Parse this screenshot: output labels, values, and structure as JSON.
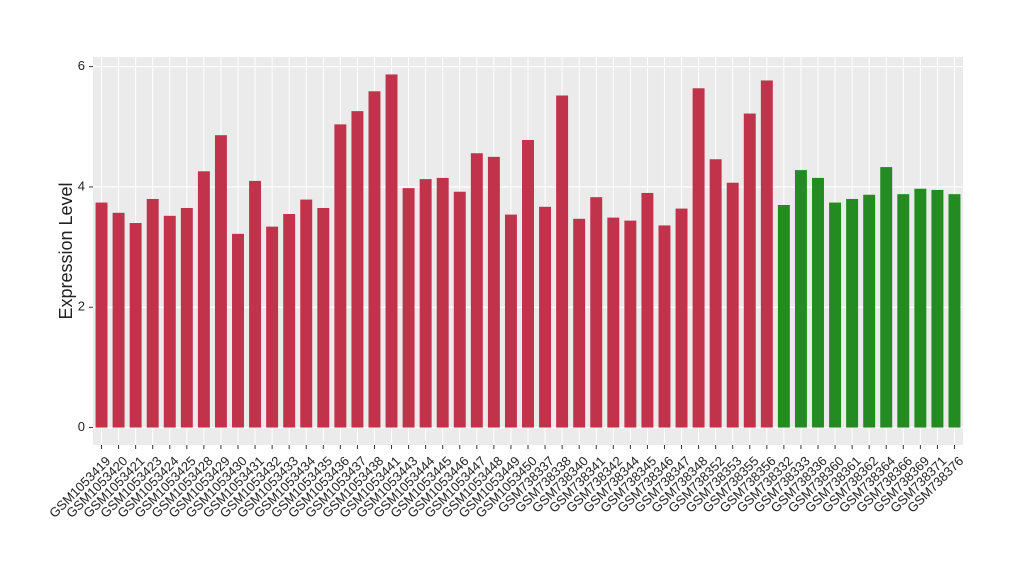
{
  "chart_data": {
    "type": "bar",
    "y_label": "Expression Level",
    "categories": [
      "GSM1053419",
      "GSM1053420",
      "GSM1053421",
      "GSM1053423",
      "GSM1053424",
      "GSM1053425",
      "GSM1053428",
      "GSM1053429",
      "GSM1053430",
      "GSM1053431",
      "GSM1053432",
      "GSM1053433",
      "GSM1053434",
      "GSM1053435",
      "GSM1053436",
      "GSM1053437",
      "GSM1053438",
      "GSM1053441",
      "GSM1053443",
      "GSM1053444",
      "GSM1053445",
      "GSM1053446",
      "GSM1053447",
      "GSM1053448",
      "GSM1053449",
      "GSM1053450",
      "GSM738337",
      "GSM738338",
      "GSM738340",
      "GSM738341",
      "GSM738342",
      "GSM738344",
      "GSM738345",
      "GSM738346",
      "GSM738347",
      "GSM738348",
      "GSM738352",
      "GSM738353",
      "GSM738355",
      "GSM738356",
      "GSM738332",
      "GSM738333",
      "GSM738336",
      "GSM738360",
      "GSM738361",
      "GSM738362",
      "GSM738364",
      "GSM738366",
      "GSM738369",
      "GSM738371",
      "GSM738376"
    ],
    "values": [
      3.74,
      3.57,
      3.4,
      3.8,
      3.52,
      3.65,
      4.26,
      4.86,
      3.22,
      4.1,
      3.34,
      3.55,
      3.79,
      3.65,
      5.04,
      5.26,
      5.59,
      5.87,
      3.98,
      4.13,
      4.15,
      3.92,
      4.56,
      4.5,
      3.54,
      4.78,
      3.67,
      5.52,
      3.47,
      3.83,
      3.49,
      3.44,
      3.9,
      3.36,
      3.64,
      5.64,
      4.46,
      4.07,
      5.22,
      5.77,
      3.7,
      4.28,
      4.15,
      3.74,
      3.8,
      3.87,
      4.33,
      3.88,
      3.97,
      3.95,
      3.88
    ],
    "colors": [
      "#c0334a",
      "#c0334a",
      "#c0334a",
      "#c0334a",
      "#c0334a",
      "#c0334a",
      "#c0334a",
      "#c0334a",
      "#c0334a",
      "#c0334a",
      "#c0334a",
      "#c0334a",
      "#c0334a",
      "#c0334a",
      "#c0334a",
      "#c0334a",
      "#c0334a",
      "#c0334a",
      "#c0334a",
      "#c0334a",
      "#c0334a",
      "#c0334a",
      "#c0334a",
      "#c0334a",
      "#c0334a",
      "#c0334a",
      "#c0334a",
      "#c0334a",
      "#c0334a",
      "#c0334a",
      "#c0334a",
      "#c0334a",
      "#c0334a",
      "#c0334a",
      "#c0334a",
      "#c0334a",
      "#c0334a",
      "#c0334a",
      "#c0334a",
      "#c0334a",
      "#238b22",
      "#238b22",
      "#238b22",
      "#238b22",
      "#238b22",
      "#238b22",
      "#238b22",
      "#238b22",
      "#238b22",
      "#238b22",
      "#238b22"
    ],
    "ylim": [
      -0.29,
      6.16
    ],
    "yticks": [
      0,
      2,
      4,
      6
    ],
    "grid": true
  }
}
